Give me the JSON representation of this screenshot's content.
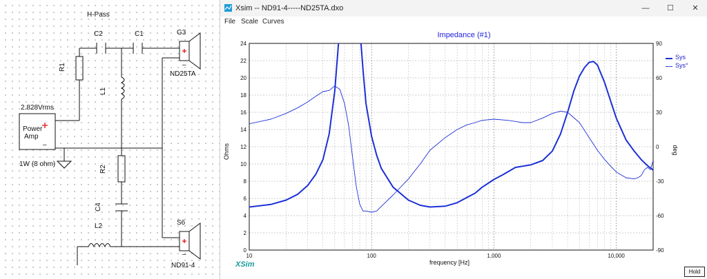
{
  "schematic": {
    "title": "H-Pass",
    "labels": {
      "c2": "C2",
      "c1": "C1",
      "r1": "R1",
      "l1": "L1",
      "r2": "R2",
      "c4": "C4",
      "l2": "L2",
      "g3": "G3",
      "g3_model": "ND25TA",
      "s6": "S6",
      "s6_model": "ND91-4",
      "voltage": "2.828Vrms",
      "amp_line1": "Power",
      "amp_line2": "Amp",
      "amp_plus": "+",
      "amp_minus": "–",
      "amp_rating": "1W (8 ohm)",
      "drv_plus": "+",
      "drv_minus": "–"
    }
  },
  "window": {
    "title": "Xsim -- ND91-4-----ND25TA.dxo",
    "controls": {
      "minimize": "—",
      "maximize": "☐",
      "close": "✕"
    },
    "menu": [
      "File",
      "Scale",
      "Curves"
    ],
    "brand": "XSim",
    "hold_button": "Hold"
  },
  "chart_data": {
    "type": "line",
    "title": "Impedance (#1)",
    "xlabel": "frequency [Hz]",
    "ylabel": "Ohms",
    "y2label": "deg",
    "xscale": "log",
    "xlim": [
      10,
      20000
    ],
    "ylim": [
      0,
      24
    ],
    "y2lim": [
      -90,
      90
    ],
    "x_ticks": [
      "10",
      "100",
      "1,000",
      "10,000"
    ],
    "y_ticks": [
      "0",
      "2",
      "4",
      "6",
      "8",
      "10",
      "12",
      "14",
      "16",
      "18",
      "20",
      "22",
      "24"
    ],
    "y2_ticks": [
      "-90",
      "-60",
      "-30",
      "0",
      "30",
      "60",
      "90"
    ],
    "grid": true,
    "legend_position": "top-right",
    "colors": {
      "series": "#1a2fd6",
      "title": "#2020e0",
      "brand": "#1a9a9a"
    },
    "series": [
      {
        "name": "Sys",
        "axis": "left",
        "style": "solid-thick",
        "points": [
          [
            10,
            5.0
          ],
          [
            15,
            5.3
          ],
          [
            20,
            5.8
          ],
          [
            25,
            6.5
          ],
          [
            30,
            7.5
          ],
          [
            35,
            8.8
          ],
          [
            40,
            10.5
          ],
          [
            45,
            13.5
          ],
          [
            50,
            18.5
          ],
          [
            55,
            26
          ],
          [
            80,
            26
          ],
          [
            85,
            21
          ],
          [
            90,
            17
          ],
          [
            100,
            13.2
          ],
          [
            110,
            11
          ],
          [
            120,
            9.5
          ],
          [
            150,
            7.3
          ],
          [
            200,
            5.8
          ],
          [
            250,
            5.2
          ],
          [
            300,
            5.0
          ],
          [
            400,
            5.1
          ],
          [
            500,
            5.5
          ],
          [
            600,
            6.1
          ],
          [
            700,
            6.6
          ],
          [
            800,
            7.3
          ],
          [
            1000,
            8.2
          ],
          [
            1200,
            8.8
          ],
          [
            1500,
            9.6
          ],
          [
            2000,
            9.9
          ],
          [
            2500,
            10.4
          ],
          [
            3000,
            11.5
          ],
          [
            3500,
            13.5
          ],
          [
            4000,
            16.0
          ],
          [
            4500,
            18.5
          ],
          [
            5000,
            20.2
          ],
          [
            5500,
            21.2
          ],
          [
            6000,
            21.8
          ],
          [
            6500,
            21.9
          ],
          [
            7000,
            21.5
          ],
          [
            8000,
            19.5
          ],
          [
            9000,
            17.3
          ],
          [
            10000,
            15.3
          ],
          [
            12000,
            12.8
          ],
          [
            14000,
            11.5
          ],
          [
            16000,
            10.5
          ],
          [
            18000,
            9.8
          ],
          [
            20000,
            9.3
          ]
        ]
      },
      {
        "name": "Sys°",
        "axis": "right",
        "style": "thin",
        "points": [
          [
            10,
            20
          ],
          [
            15,
            24
          ],
          [
            20,
            29
          ],
          [
            25,
            34
          ],
          [
            30,
            39
          ],
          [
            35,
            44
          ],
          [
            40,
            48
          ],
          [
            45,
            49
          ],
          [
            50,
            53
          ],
          [
            55,
            50
          ],
          [
            60,
            38
          ],
          [
            65,
            18
          ],
          [
            70,
            -10
          ],
          [
            75,
            -35
          ],
          [
            80,
            -50
          ],
          [
            85,
            -56
          ],
          [
            90,
            -56
          ],
          [
            100,
            -57
          ],
          [
            110,
            -56
          ],
          [
            120,
            -52
          ],
          [
            150,
            -42
          ],
          [
            200,
            -28
          ],
          [
            250,
            -15
          ],
          [
            300,
            -3
          ],
          [
            400,
            8
          ],
          [
            500,
            15
          ],
          [
            600,
            19
          ],
          [
            700,
            21
          ],
          [
            800,
            23
          ],
          [
            1000,
            24
          ],
          [
            1300,
            23
          ],
          [
            1500,
            22
          ],
          [
            1700,
            21
          ],
          [
            2000,
            21
          ],
          [
            2500,
            25
          ],
          [
            3000,
            29
          ],
          [
            3500,
            31
          ],
          [
            4000,
            30
          ],
          [
            5000,
            21
          ],
          [
            6000,
            8
          ],
          [
            7000,
            -3
          ],
          [
            8000,
            -11
          ],
          [
            9000,
            -17
          ],
          [
            10000,
            -22
          ],
          [
            12000,
            -27
          ],
          [
            14000,
            -28
          ],
          [
            15000,
            -27
          ],
          [
            16000,
            -25
          ],
          [
            17000,
            -20
          ],
          [
            18000,
            -18
          ],
          [
            19000,
            -20
          ],
          [
            20000,
            -12
          ]
        ]
      }
    ]
  }
}
